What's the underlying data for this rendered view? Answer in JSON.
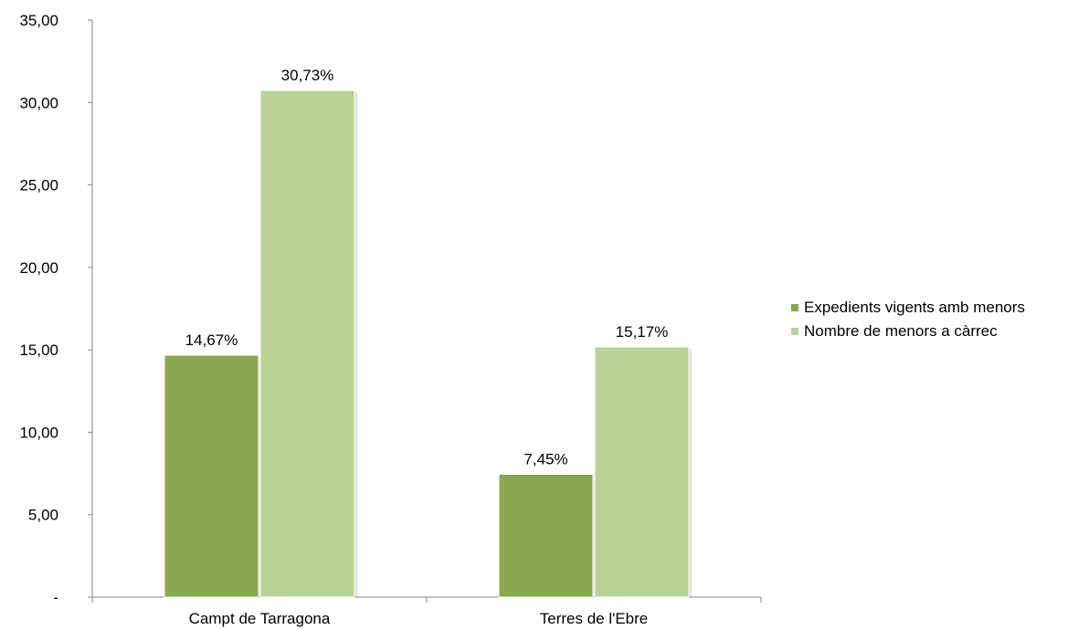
{
  "chart_data": {
    "type": "bar",
    "categories": [
      "Campt de Tarragona",
      "Terres de l'Ebre"
    ],
    "series": [
      {
        "name": "Expedients vigents amb menors",
        "values": [
          14.67,
          7.45
        ],
        "labels": [
          "14,67%",
          "7,45%"
        ],
        "color": "#8aa84f"
      },
      {
        "name": "Nombre de menors a càrrec",
        "values": [
          30.73,
          15.17
        ],
        "labels": [
          "30,73%",
          "15,17%"
        ],
        "color": "#bad197"
      }
    ],
    "ylim": [
      0,
      35
    ],
    "yticks": [
      0,
      5,
      10,
      15,
      20,
      25,
      30,
      35
    ],
    "ytick_labels": [
      "-",
      "5,00",
      "10,00",
      "15,00",
      "20,00",
      "25,00",
      "30,00",
      "35,00"
    ],
    "title": "",
    "xlabel": "",
    "ylabel": "",
    "grid": false,
    "legend_position": "right"
  }
}
